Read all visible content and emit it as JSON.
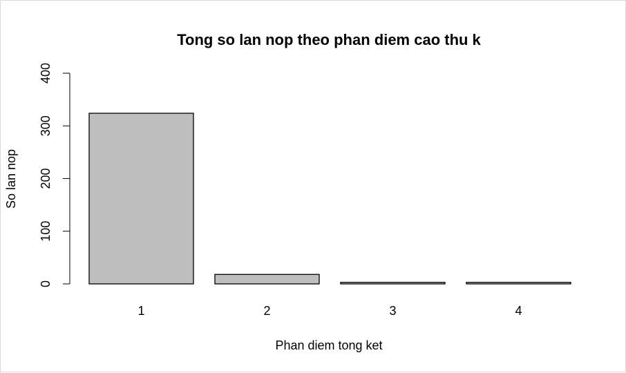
{
  "chart_data": {
    "type": "bar",
    "title": "Tong so lan nop theo phan diem cao thu k",
    "xlabel": "Phan diem tong ket",
    "ylabel": "So lan nop",
    "categories": [
      "1",
      "2",
      "3",
      "4"
    ],
    "values": [
      324,
      18,
      3,
      3
    ],
    "ylim": [
      0,
      400
    ],
    "yticks": [
      0,
      100,
      200,
      300,
      400
    ],
    "grid": false,
    "legend": "none",
    "bar_color": "#bebebe",
    "bar_stroke": "#000000"
  }
}
